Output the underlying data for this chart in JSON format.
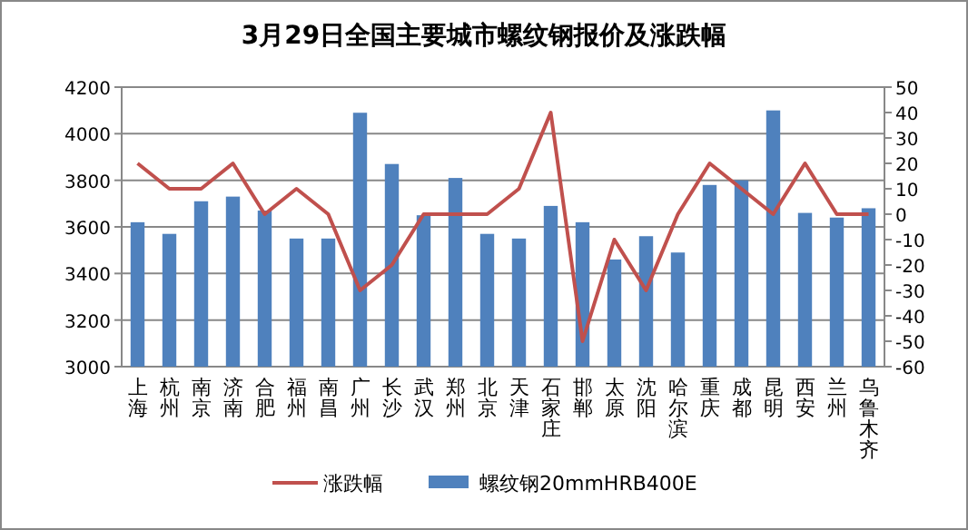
{
  "chart_data": {
    "type": "bar",
    "title": "3月29日全国主要城市螺纹钢报价及涨跌幅",
    "categories": [
      "上海",
      "杭州",
      "南京",
      "济南",
      "合肥",
      "福州",
      "南昌",
      "广州",
      "长沙",
      "武汉",
      "郑州",
      "北京",
      "天津",
      "石家庄",
      "邯郸",
      "太原",
      "沈阳",
      "哈尔滨",
      "重庆",
      "成都",
      "昆明",
      "西安",
      "兰州",
      "乌鲁木齐"
    ],
    "series": [
      {
        "name": "涨跌幅",
        "type": "line",
        "axis": "y2",
        "color": "#c0504d",
        "values": [
          20,
          10,
          10,
          20,
          0,
          10,
          0,
          -30,
          -20,
          0,
          0,
          0,
          10,
          40,
          -50,
          -10,
          -30,
          0,
          20,
          10,
          0,
          20,
          0,
          0
        ]
      },
      {
        "name": "螺纹钢20mmHRB400E",
        "color": "#4f81bd",
        "values": [
          3620,
          3570,
          3710,
          3730,
          3670,
          3550,
          3550,
          4090,
          3870,
          3650,
          3810,
          3570,
          3550,
          3690,
          3620,
          3460,
          3560,
          3490,
          3780,
          3800,
          4100,
          3660,
          3640,
          3680
        ]
      }
    ],
    "ylim": [
      3000,
      4200
    ],
    "yticks": [
      3000,
      3200,
      3400,
      3600,
      3800,
      4000,
      4200
    ],
    "y2lim": [
      -60,
      50
    ],
    "y2ticks": [
      -60,
      -50,
      -40,
      -30,
      -20,
      -10,
      0,
      10,
      20,
      30,
      40,
      50
    ],
    "grid": "y",
    "legend": "bottom"
  }
}
